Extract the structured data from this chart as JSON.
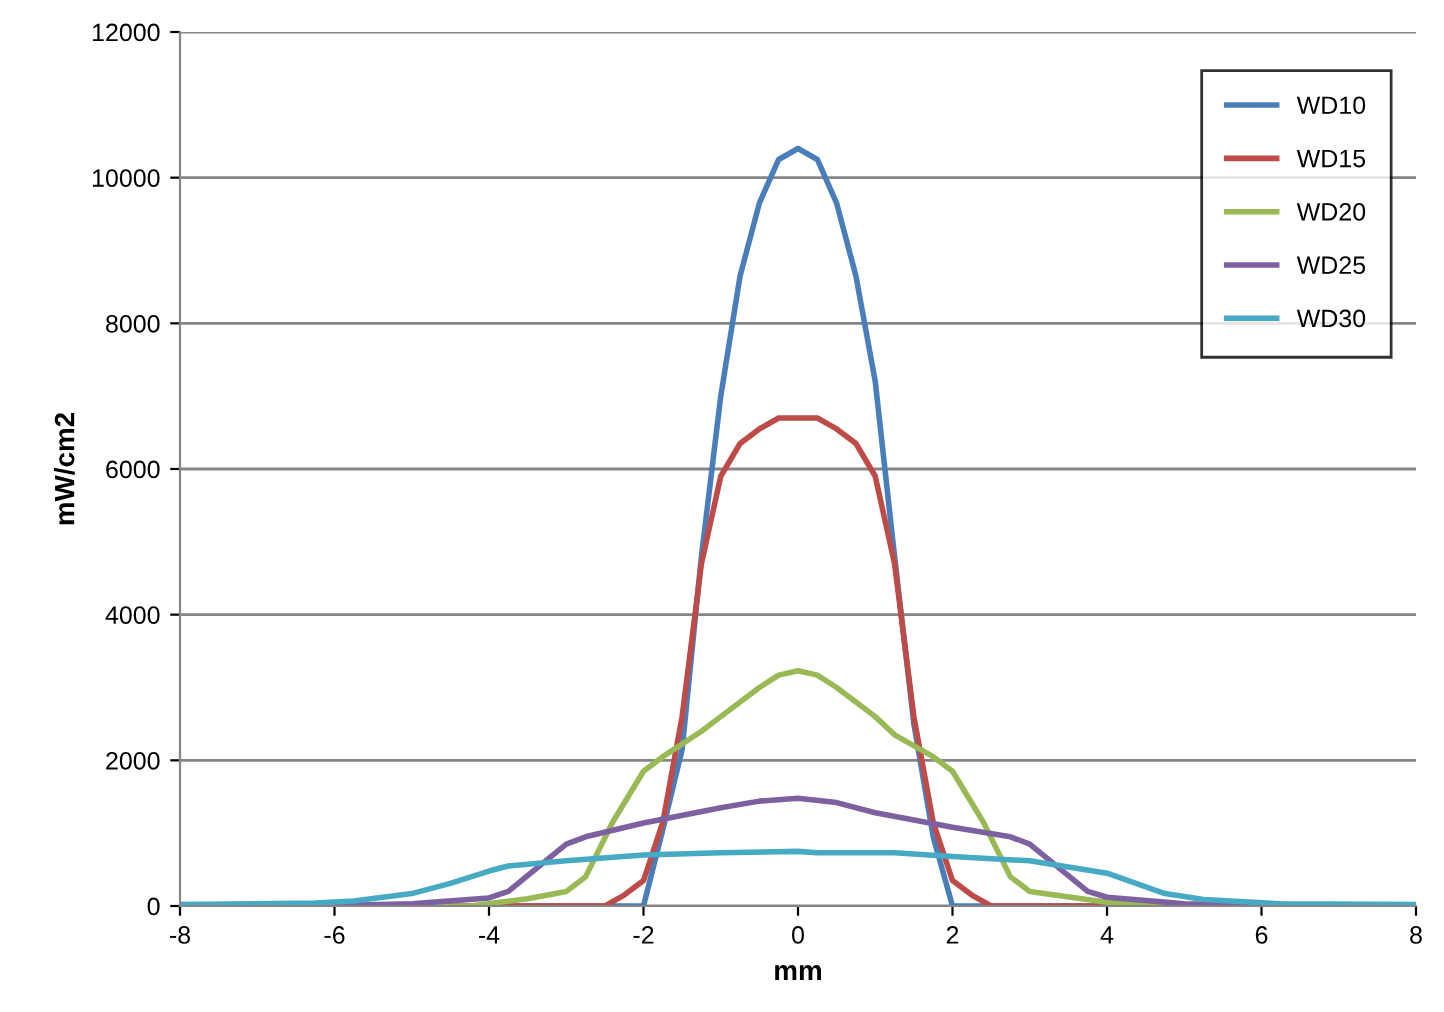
{
  "chart_data": {
    "type": "line",
    "xlabel": "mm",
    "ylabel": "mW/cm2",
    "xlim": [
      -8,
      8
    ],
    "xticks": [
      -8,
      -6,
      -4,
      -2,
      0,
      2,
      4,
      6,
      8
    ],
    "ylim": [
      0,
      12000
    ],
    "yticks": [
      0,
      2000,
      4000,
      6000,
      8000,
      10000,
      12000
    ],
    "grid": "y",
    "legend": "top right",
    "marker": "none",
    "line_style": "solid",
    "series": [
      {
        "name": "WD10",
        "color": "#4a7ebb",
        "x": [
          -8,
          -2.25,
          -2,
          -1.75,
          -1.5,
          -1.25,
          -1,
          -0.75,
          -0.5,
          -0.25,
          0,
          0.25,
          0.5,
          0.75,
          1,
          1.25,
          1.5,
          1.75,
          2,
          2.25,
          8
        ],
        "values": [
          0,
          0,
          0,
          1050,
          2150,
          4800,
          7000,
          8650,
          9650,
          10250,
          10400,
          10250,
          9650,
          8650,
          7200,
          4800,
          2500,
          950,
          0,
          0,
          0
        ]
      },
      {
        "name": "WD15",
        "color": "#be4b48",
        "x": [
          -8,
          -2.5,
          -2.25,
          -2,
          -1.75,
          -1.5,
          -1.25,
          -1,
          -0.75,
          -0.5,
          -0.25,
          0,
          0.25,
          0.5,
          0.75,
          1,
          1.25,
          1.5,
          1.75,
          2,
          2.25,
          2.5,
          8
        ],
        "values": [
          0,
          0,
          150,
          350,
          1150,
          2600,
          4700,
          5900,
          6350,
          6550,
          6700,
          6700,
          6700,
          6550,
          6350,
          5900,
          4700,
          2600,
          1150,
          350,
          150,
          0,
          0
        ]
      },
      {
        "name": "WD20",
        "color": "#98b954",
        "x": [
          -8,
          -4.25,
          -3.5,
          -3,
          -2.75,
          -2.4,
          -2,
          -1.75,
          -1.25,
          -1,
          -0.5,
          -0.25,
          0,
          0.25,
          0.5,
          1,
          1.25,
          1.75,
          2,
          2.4,
          2.75,
          3,
          4,
          4.75,
          8
        ],
        "values": [
          0,
          0,
          100,
          200,
          400,
          1150,
          1850,
          2050,
          2400,
          2600,
          3000,
          3170,
          3230,
          3170,
          3000,
          2600,
          2350,
          2050,
          1850,
          1150,
          400,
          200,
          50,
          0,
          0
        ]
      },
      {
        "name": "WD25",
        "color": "#7d60a0",
        "x": [
          -8,
          -6.25,
          -5,
          -4,
          -3.75,
          -3,
          -2.75,
          -2,
          -1,
          -0.5,
          0,
          0.5,
          1,
          2,
          2.75,
          3,
          3.75,
          4,
          5,
          6.25,
          8
        ],
        "values": [
          0,
          0,
          30,
          110,
          200,
          850,
          950,
          1140,
          1350,
          1440,
          1480,
          1420,
          1280,
          1080,
          950,
          850,
          200,
          120,
          30,
          0,
          0
        ]
      },
      {
        "name": "WD30",
        "color": "#46aac5",
        "x": [
          -8,
          -6.25,
          -5.75,
          -5,
          -4.5,
          -4,
          -3.75,
          -3,
          -2,
          -1,
          0,
          0.25,
          1.25,
          2,
          3,
          4,
          4.75,
          5.25,
          6.25,
          8
        ],
        "values": [
          20,
          40,
          70,
          170,
          310,
          480,
          550,
          620,
          700,
          730,
          750,
          730,
          730,
          680,
          620,
          450,
          170,
          90,
          30,
          20
        ]
      }
    ]
  }
}
